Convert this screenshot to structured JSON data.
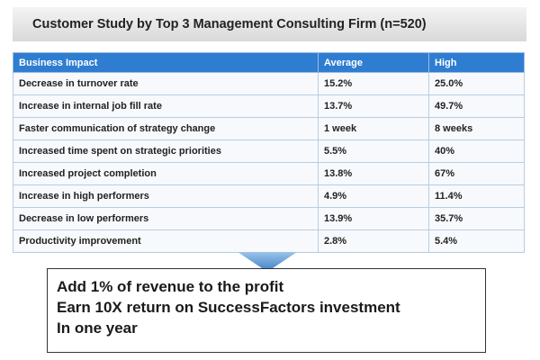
{
  "title": "Customer Study by Top 3 Management Consulting Firm (n=520)",
  "table": {
    "header": [
      "Business Impact",
      "Average",
      "High"
    ],
    "rows": [
      [
        "Decrease in turnover rate",
        "15.2%",
        "25.0%"
      ],
      [
        "Increase in internal job fill rate",
        "13.7%",
        "49.7%"
      ],
      [
        "Faster communication of strategy change",
        "1 week",
        "8 weeks"
      ],
      [
        "Increased time spent on strategic priorities",
        "5.5%",
        "40%"
      ],
      [
        "Increased project completion",
        "13.8%",
        "67%"
      ],
      [
        "Increase in high performers",
        "4.9%",
        "11.4%"
      ],
      [
        "Decrease in low performers",
        "13.9%",
        "35.7%"
      ],
      [
        "Productivity improvement",
        "2.8%",
        "5.4%"
      ]
    ]
  },
  "callout": {
    "lines": [
      "Add 1% of revenue to the profit",
      "Earn 10X return on SuccessFactors investment",
      "In one year"
    ]
  }
}
